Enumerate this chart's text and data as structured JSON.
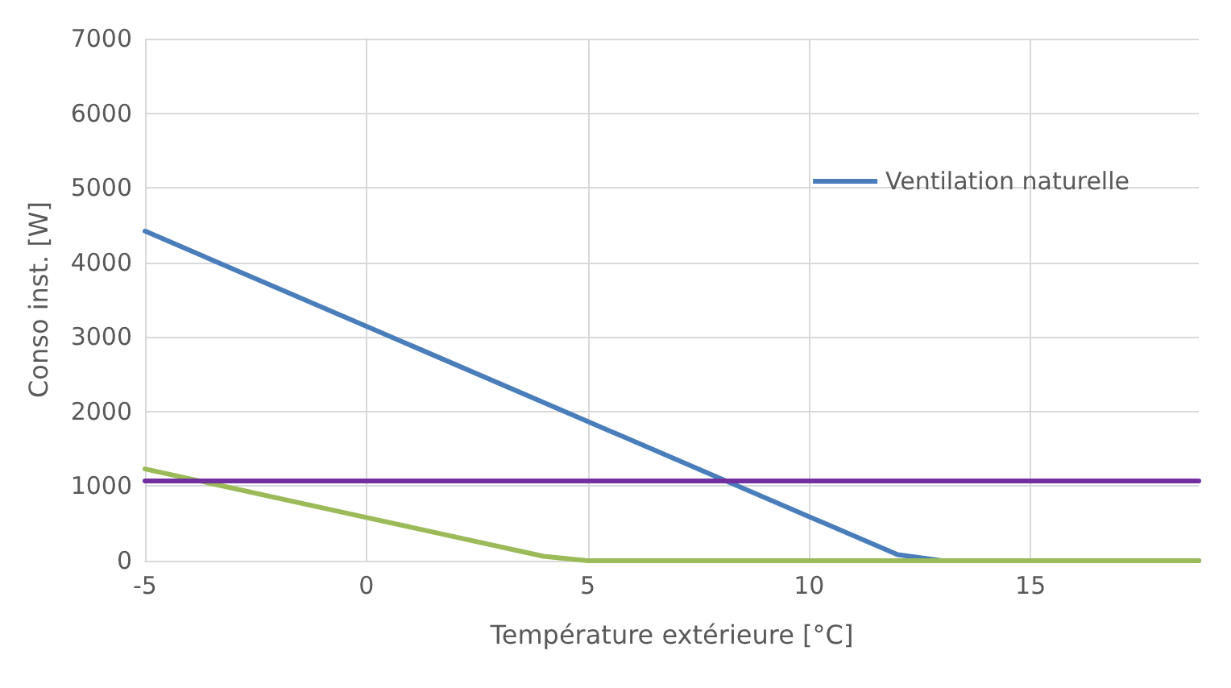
{
  "chart_data": {
    "type": "line",
    "xlabel": "Température extérieure [°C]",
    "ylabel": "Conso inst. [W]",
    "xlim": [
      -5,
      18.8
    ],
    "xticks": [
      -5,
      0,
      5,
      10,
      15
    ],
    "ylim": [
      0,
      7000
    ],
    "yticks": [
      0,
      1000,
      2000,
      3000,
      4000,
      5000,
      6000,
      7000
    ],
    "series": [
      {
        "name": "Ventilation naturelle",
        "color": "#4a7ebb",
        "x": [
          -5,
          12,
          13,
          18.8
        ],
        "values": [
          4420,
          80,
          0,
          0
        ]
      },
      {
        "color": "#9bbb59",
        "x": [
          -5,
          0,
          4,
          5,
          18.8
        ],
        "values": [
          1230,
          580,
          60,
          0,
          0
        ]
      },
      {
        "color": "#7030a0",
        "x": [
          -5,
          18.8
        ],
        "values": [
          1070,
          1070
        ]
      }
    ],
    "grid": true,
    "legend": "top right",
    "marker": "none",
    "line_style": "solid"
  }
}
